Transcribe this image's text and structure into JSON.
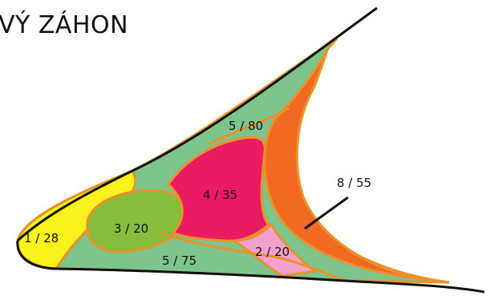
{
  "title": "VÝ ZÁHON",
  "colors": {
    "border": "#e9922a",
    "outline": "#111111",
    "green_bg": "#7cc48c",
    "yellow": "#fbf21c",
    "lime": "#86bd3a",
    "magenta": "#ea1a63",
    "pink": "#f2a0cc",
    "orange": "#f06a22"
  },
  "sections": [
    {
      "id": "yellow",
      "label": "1 / 28"
    },
    {
      "id": "lime",
      "label": "3 / 20"
    },
    {
      "id": "magenta",
      "label": "4 / 35"
    },
    {
      "id": "top",
      "label": "5 / 80"
    },
    {
      "id": "bottom",
      "label": "5 / 75"
    },
    {
      "id": "pink",
      "label": "2 / 20"
    },
    {
      "id": "orange",
      "label": "8 / 55"
    }
  ]
}
